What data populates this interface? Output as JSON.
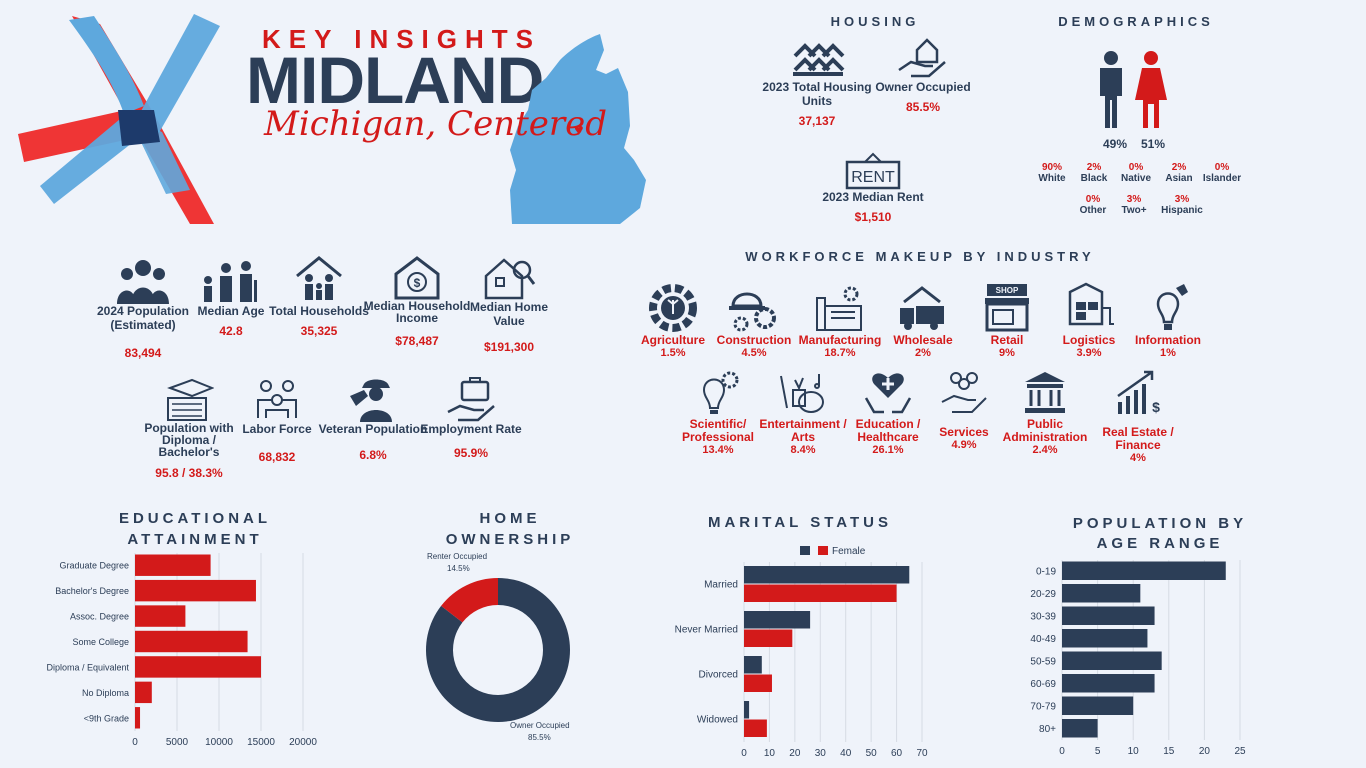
{
  "header": {
    "key_insights": "KEY INSIGHTS",
    "city": "MIDLAND",
    "tagline": "Michigan, Centered",
    "colors": {
      "navy": "#2c3e57",
      "red": "#d31a1a",
      "light_blue": "#5ea8dd",
      "background": "#eff3fa"
    }
  },
  "housing": {
    "title": "HOUSING",
    "items": [
      {
        "icon": "houses-icon",
        "label": "2023 Total Housing Units",
        "value": "37,137"
      },
      {
        "icon": "hand-house-icon",
        "label": "Owner Occupied",
        "value": "85.5%"
      },
      {
        "icon": "rent-sign-icon",
        "label": "2023 Median Rent",
        "value": "$1,510"
      }
    ]
  },
  "demographics": {
    "title": "DEMOGRAPHICS",
    "male_pct": "49%",
    "female_pct": "51%",
    "race_row1": [
      {
        "pct": "90%",
        "name": "White"
      },
      {
        "pct": "2%",
        "name": "Black"
      },
      {
        "pct": "0%",
        "name": "Native"
      },
      {
        "pct": "2%",
        "name": "Asian"
      },
      {
        "pct": "0%",
        "name": "Islander"
      }
    ],
    "race_row2": [
      {
        "pct": "0%",
        "name": "Other"
      },
      {
        "pct": "3%",
        "name": "Two+"
      },
      {
        "pct": "3%",
        "name": "Hispanic"
      }
    ]
  },
  "stats_row1": [
    {
      "icon": "family-icon",
      "label": "2024 Population (Estimated)",
      "value": "83,494"
    },
    {
      "icon": "generations-icon",
      "label": "Median Age",
      "value": "42.8"
    },
    {
      "icon": "household-icon",
      "label": "Total Households",
      "value": "35,325"
    },
    {
      "icon": "house-dollar-icon",
      "label": "Median Household Income",
      "value": "$78,487"
    },
    {
      "icon": "home-search-icon",
      "label": "Median Home Value",
      "value": "$191,300"
    }
  ],
  "stats_row2": [
    {
      "icon": "graduation-icon",
      "label": "Population with Diploma / Bachelor's",
      "value": "95.8 / 38.3%"
    },
    {
      "icon": "team-icon",
      "label": "Labor Force",
      "value": "68,832"
    },
    {
      "icon": "salute-icon",
      "label": "Veteran Population",
      "value": "6.8%"
    },
    {
      "icon": "briefcase-hand-icon",
      "label": "Employment Rate",
      "value": "95.9%"
    }
  ],
  "workforce": {
    "title": "WORKFORCE MAKEUP BY INDUSTRY",
    "row1": [
      {
        "icon": "agriculture-icon",
        "label": "Agriculture",
        "value": "1.5%"
      },
      {
        "icon": "construction-icon",
        "label": "Construction",
        "value": "4.5%"
      },
      {
        "icon": "factory-icon",
        "label": "Manufacturing",
        "value": "18.7%"
      },
      {
        "icon": "truck-icon",
        "label": "Wholesale",
        "value": "2%"
      },
      {
        "icon": "shop-icon",
        "label": "Retail",
        "value": "9%"
      },
      {
        "icon": "logistics-icon",
        "label": "Logistics",
        "value": "3.9%"
      },
      {
        "icon": "lightbulb-icon",
        "label": "Information",
        "value": "1%"
      }
    ],
    "row2": [
      {
        "icon": "science-icon",
        "label": "Scientific/ Professional",
        "value": "13.4%"
      },
      {
        "icon": "arts-icon",
        "label": "Entertainment / Arts",
        "value": "8.4%"
      },
      {
        "icon": "health-icon",
        "label": "Education / Healthcare",
        "value": "26.1%"
      },
      {
        "icon": "services-icon",
        "label": "Services",
        "value": "4.9%"
      },
      {
        "icon": "government-icon",
        "label": "Public Administration",
        "value": "2.4%"
      },
      {
        "icon": "finance-icon",
        "label": "Real Estate / Finance",
        "value": "4%"
      }
    ],
    "shop_sign": "SHOP",
    "rent_sign": "RENT"
  },
  "chart_data": [
    {
      "type": "bar",
      "orientation": "horizontal",
      "title": "EDUCATIONAL ATTAINMENT",
      "categories": [
        "Graduate Degree",
        "Bachelor's Degree",
        "Assoc. Degree",
        "Some College",
        "Diploma / Equivalent",
        "No Diploma",
        "<9th Grade"
      ],
      "values": [
        9000,
        14400,
        6000,
        13400,
        15000,
        2000,
        600
      ],
      "xlim": [
        0,
        20000
      ],
      "xticks": [
        "0",
        "5000",
        "10000",
        "15000",
        "20000"
      ],
      "color": "#d31a1a",
      "grid": true
    },
    {
      "type": "pie",
      "donut": true,
      "title": "HOME OWNERSHIP",
      "slices": [
        {
          "name": "Owner Occupied",
          "value": 85.5,
          "label": "85.5%",
          "color": "#2c3e57"
        },
        {
          "name": "Renter Occupied",
          "value": 14.5,
          "label": "14.5%",
          "color": "#d31a1a"
        }
      ]
    },
    {
      "type": "bar",
      "orientation": "horizontal",
      "title": "MARITAL STATUS",
      "categories": [
        "Married",
        "Never Married",
        "Divorced",
        "Widowed"
      ],
      "series": [
        {
          "name": "",
          "color": "#2c3e57",
          "values": [
            65,
            26,
            7,
            2
          ]
        },
        {
          "name": "Female",
          "color": "#d31a1a",
          "values": [
            60,
            19,
            11,
            9
          ]
        }
      ],
      "xlim": [
        0,
        70
      ],
      "xticks": [
        "0",
        "10",
        "20",
        "30",
        "40",
        "50",
        "60",
        "70"
      ],
      "legend": "top",
      "grid": true
    },
    {
      "type": "bar",
      "orientation": "horizontal",
      "title": "POPULATION BY AGE RANGE",
      "categories": [
        "0-19",
        "20-29",
        "30-39",
        "40-49",
        "50-59",
        "60-69",
        "70-79",
        "80+"
      ],
      "values": [
        23,
        11,
        13,
        12,
        14,
        13,
        10,
        5
      ],
      "xlim": [
        0,
        25
      ],
      "xticks": [
        "0",
        "5",
        "10",
        "15",
        "20",
        "25"
      ],
      "color": "#2c3e57",
      "grid": true
    }
  ]
}
